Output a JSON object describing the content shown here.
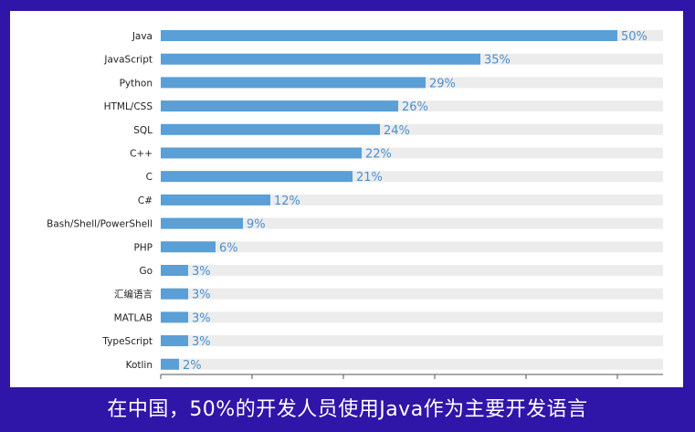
{
  "caption": "在中国，50%的开发人员使用Java作为主要开发语言",
  "colors": {
    "background": "#2f15a8",
    "panel": "#ffffff",
    "bar": "#5a9fd6",
    "track": "#ececec",
    "label": "#222222",
    "value_label": "#4a90d0",
    "axis": "#555555"
  },
  "chart_data": {
    "type": "bar",
    "orientation": "horizontal",
    "categories": [
      "Java",
      "JavaScript",
      "Python",
      "HTML/CSS",
      "SQL",
      "C++",
      "C",
      "C#",
      "Bash/Shell/PowerShell",
      "PHP",
      "Go",
      "汇编语言",
      "MATLAB",
      "TypeScript",
      "Kotlin"
    ],
    "values": [
      50,
      35,
      29,
      26,
      24,
      22,
      21,
      12,
      9,
      6,
      3,
      3,
      3,
      3,
      2
    ],
    "value_labels": [
      "50%",
      "35%",
      "29%",
      "26%",
      "24%",
      "22%",
      "21%",
      "12%",
      "9%",
      "6%",
      "3%",
      "3%",
      "3%",
      "3%",
      "2%"
    ],
    "title": "",
    "xlabel": "",
    "ylabel": "",
    "xlim": [
      0,
      55
    ],
    "grid": false,
    "legend": "none"
  }
}
